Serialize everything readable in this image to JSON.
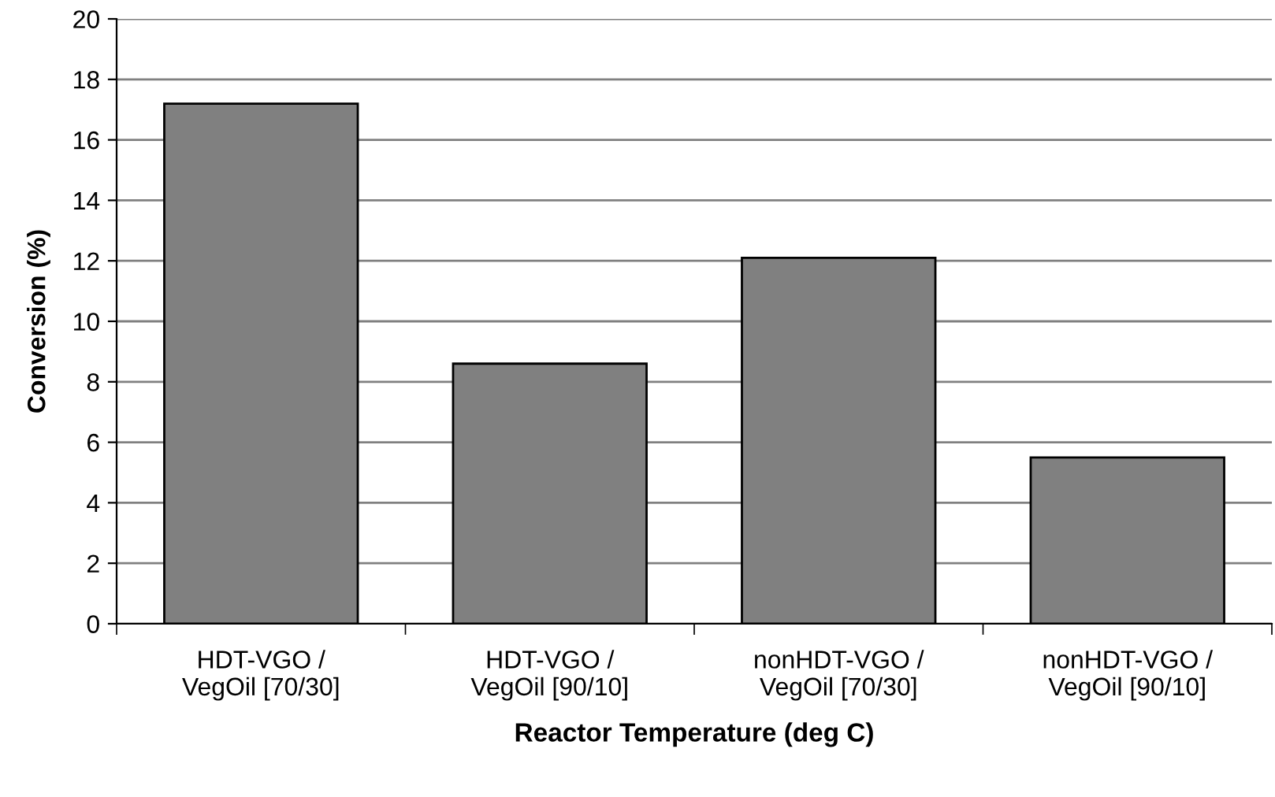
{
  "chart_data": {
    "type": "bar",
    "xlabel": "Reactor Temperature (deg C)",
    "ylabel": "Conversion (%)",
    "categories": [
      "HDT-VGO /\nVegOil [70/30]",
      "HDT-VGO /\nVegOil [90/10]",
      "nonHDT-VGO /\nVegOil [70/30]",
      "nonHDT-VGO /\nVegOil [90/10]"
    ],
    "values": [
      17.2,
      8.6,
      12.1,
      5.5
    ],
    "color": "#808080",
    "ylim": [
      0,
      20
    ],
    "yticks": [
      0,
      2,
      4,
      6,
      8,
      10,
      12,
      14,
      16,
      18,
      20
    ],
    "grid": "y"
  }
}
